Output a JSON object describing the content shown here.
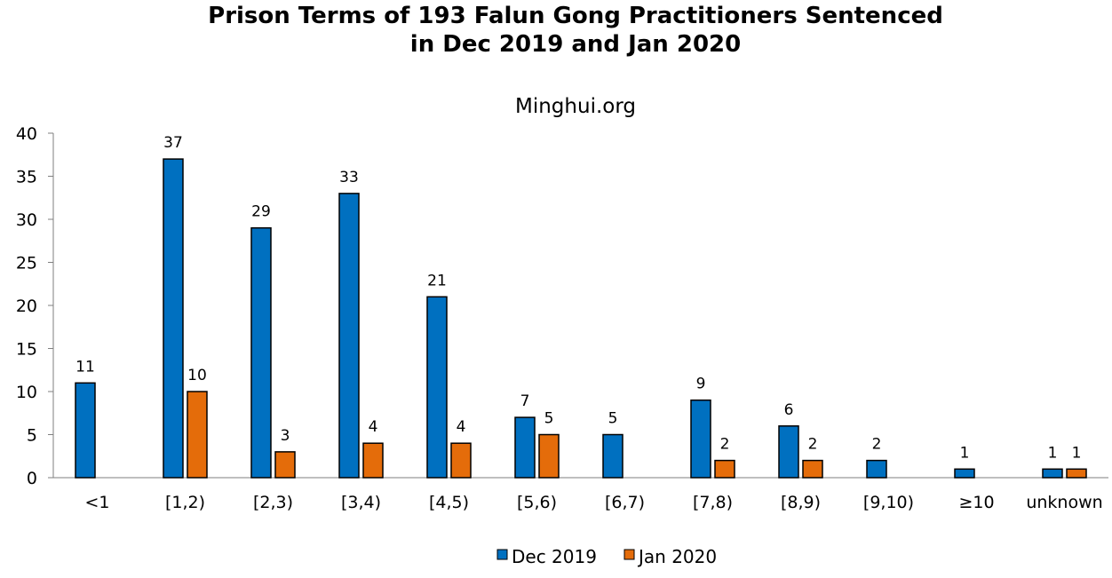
{
  "chart_data": {
    "type": "bar",
    "title_line1": "Prison Terms of 193 Falun Gong Practitioners Sentenced",
    "title_line2": "in Dec 2019 and Jan 2020",
    "subtitle": "Minghui.org",
    "xlabel": "",
    "ylabel": "",
    "ylim": [
      0,
      40
    ],
    "yticks": [
      0,
      5,
      10,
      15,
      20,
      25,
      30,
      35,
      40
    ],
    "categories": [
      "<1",
      "[1,2)",
      "[2,3)",
      "[3,4)",
      "[4,5)",
      "[5,6)",
      "[6,7)",
      "[7,8)",
      "[8,9)",
      "[9,10)",
      "≥10",
      "unknown"
    ],
    "series": [
      {
        "name": "Dec 2019",
        "color": "#0070C0",
        "values": [
          11,
          37,
          29,
          33,
          21,
          7,
          5,
          9,
          6,
          2,
          1,
          1
        ]
      },
      {
        "name": "Jan 2020",
        "color": "#E46C0A",
        "values": [
          0,
          10,
          3,
          4,
          4,
          5,
          0,
          2,
          2,
          0,
          0,
          1
        ]
      }
    ],
    "grid": false,
    "legend_position": "bottom"
  }
}
